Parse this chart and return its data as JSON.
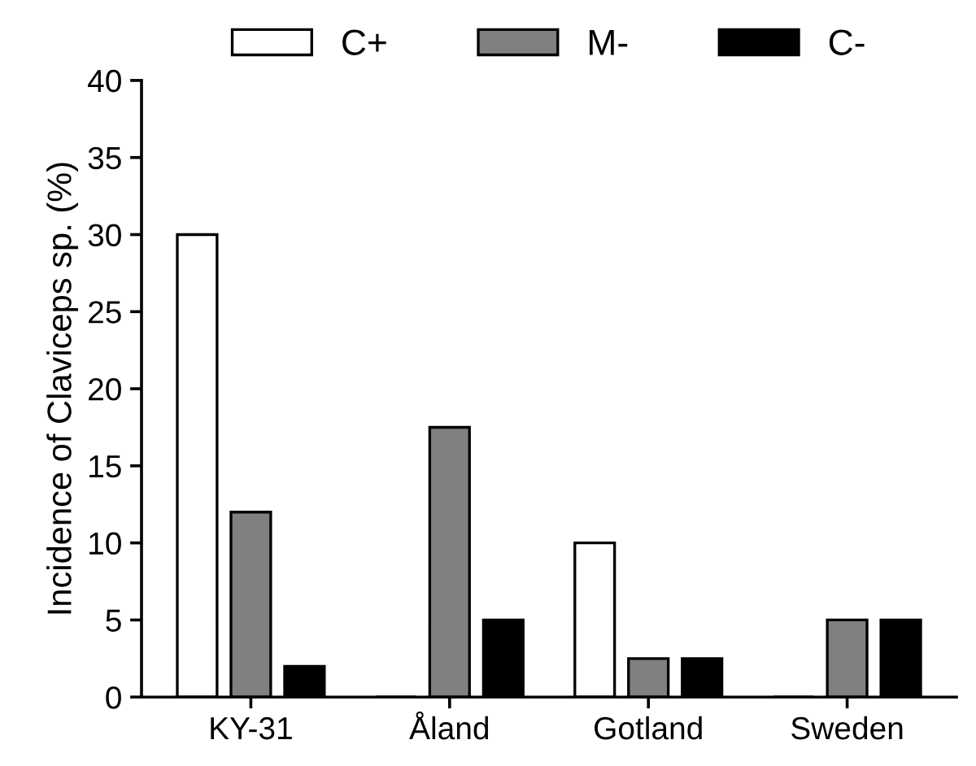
{
  "chart_data": {
    "type": "bar",
    "ylabel": "Incidence of Claviceps sp. (%)",
    "categories": [
      "KY-31",
      "Åland",
      "Gotland",
      "Sweden"
    ],
    "series": [
      {
        "name": "C+",
        "color": "#ffffff",
        "values": [
          30,
          0,
          10,
          0
        ]
      },
      {
        "name": "M-",
        "color": "#808080",
        "values": [
          12,
          17.5,
          2.5,
          5
        ]
      },
      {
        "name": "C-",
        "color": "#000000",
        "values": [
          2,
          5,
          2.5,
          5
        ]
      }
    ],
    "ylim": [
      0,
      40
    ],
    "yticks": [
      0,
      5,
      10,
      15,
      20,
      25,
      30,
      35,
      40
    ],
    "grid": false,
    "legend": "top"
  }
}
